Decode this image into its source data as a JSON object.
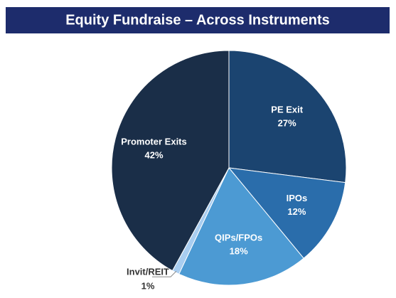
{
  "chart_data": {
    "type": "pie",
    "title": "Equity Fundraise – Across Instruments",
    "categories": [
      "PE Exit",
      "IPOs",
      "QIPs/FPOs",
      "Invit/REIT",
      "Promoter Exits"
    ],
    "values": [
      27,
      12,
      18,
      1,
      42
    ],
    "value_labels": [
      "27%",
      "12%",
      "18%",
      "1%",
      "42%"
    ],
    "colors": [
      "#1b4470",
      "#2a6dab",
      "#4c9ad3",
      "#a8cdf0",
      "#1a2e48"
    ]
  }
}
